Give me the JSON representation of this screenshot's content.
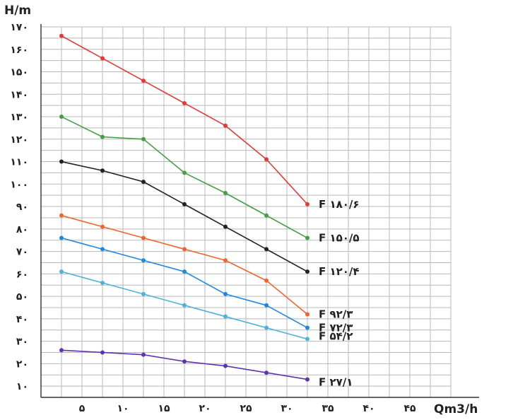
{
  "chart_data": {
    "type": "line",
    "ylabel": "H/m",
    "xlabel": "Qm3/h",
    "x_ticks": [
      "۵",
      "۱۰",
      "۱۵",
      "۲۰",
      "۲۵",
      "۳۰",
      "۳۵",
      "۴۰",
      "۴۵"
    ],
    "y_ticks": [
      "۱۰",
      "۲۰",
      "۳۰",
      "۴۰",
      "۵۰",
      "۶۰",
      "۷۰",
      "۸۰",
      "۹۰",
      "۱۰۰",
      "۱۱۰",
      "۱۲۰",
      "۱۳۰",
      "۱۴۰",
      "۱۵۰",
      "۱۶۰",
      "۱۷۰"
    ],
    "xlim": [
      0,
      50
    ],
    "ylim": [
      5,
      170
    ],
    "grid": true,
    "x": [
      2.5,
      7.5,
      12.5,
      17.5,
      22.5,
      27.5,
      32.5
    ],
    "series": [
      {
        "name": "F ۱۸۰/۶",
        "color": "#e53935",
        "values": [
          166,
          156,
          146,
          136,
          126,
          111,
          91
        ]
      },
      {
        "name": "F ۱۵۰/۵",
        "color": "#43a047",
        "values": [
          130,
          121,
          120,
          105,
          96,
          86,
          76
        ]
      },
      {
        "name": "F ۱۲۰/۴",
        "color": "#222222",
        "values": [
          110,
          106,
          101,
          91,
          81,
          71,
          61
        ]
      },
      {
        "name": "F ۹۲/۳",
        "color": "#f4642a",
        "values": [
          86,
          81,
          76,
          71,
          66,
          57,
          42
        ]
      },
      {
        "name": "F ۷۲/۳",
        "color": "#1e88e5",
        "values": [
          76,
          71,
          66,
          61,
          51,
          46,
          36
        ]
      },
      {
        "name": "F ۵۴/۲",
        "color": "#4fb3d9",
        "values": [
          61,
          56,
          51,
          46,
          41,
          36,
          31
        ]
      },
      {
        "name": "F ۲۷/۱",
        "color": "#5e35b1",
        "values": [
          26,
          25,
          24,
          21,
          19,
          16,
          13
        ]
      }
    ]
  }
}
